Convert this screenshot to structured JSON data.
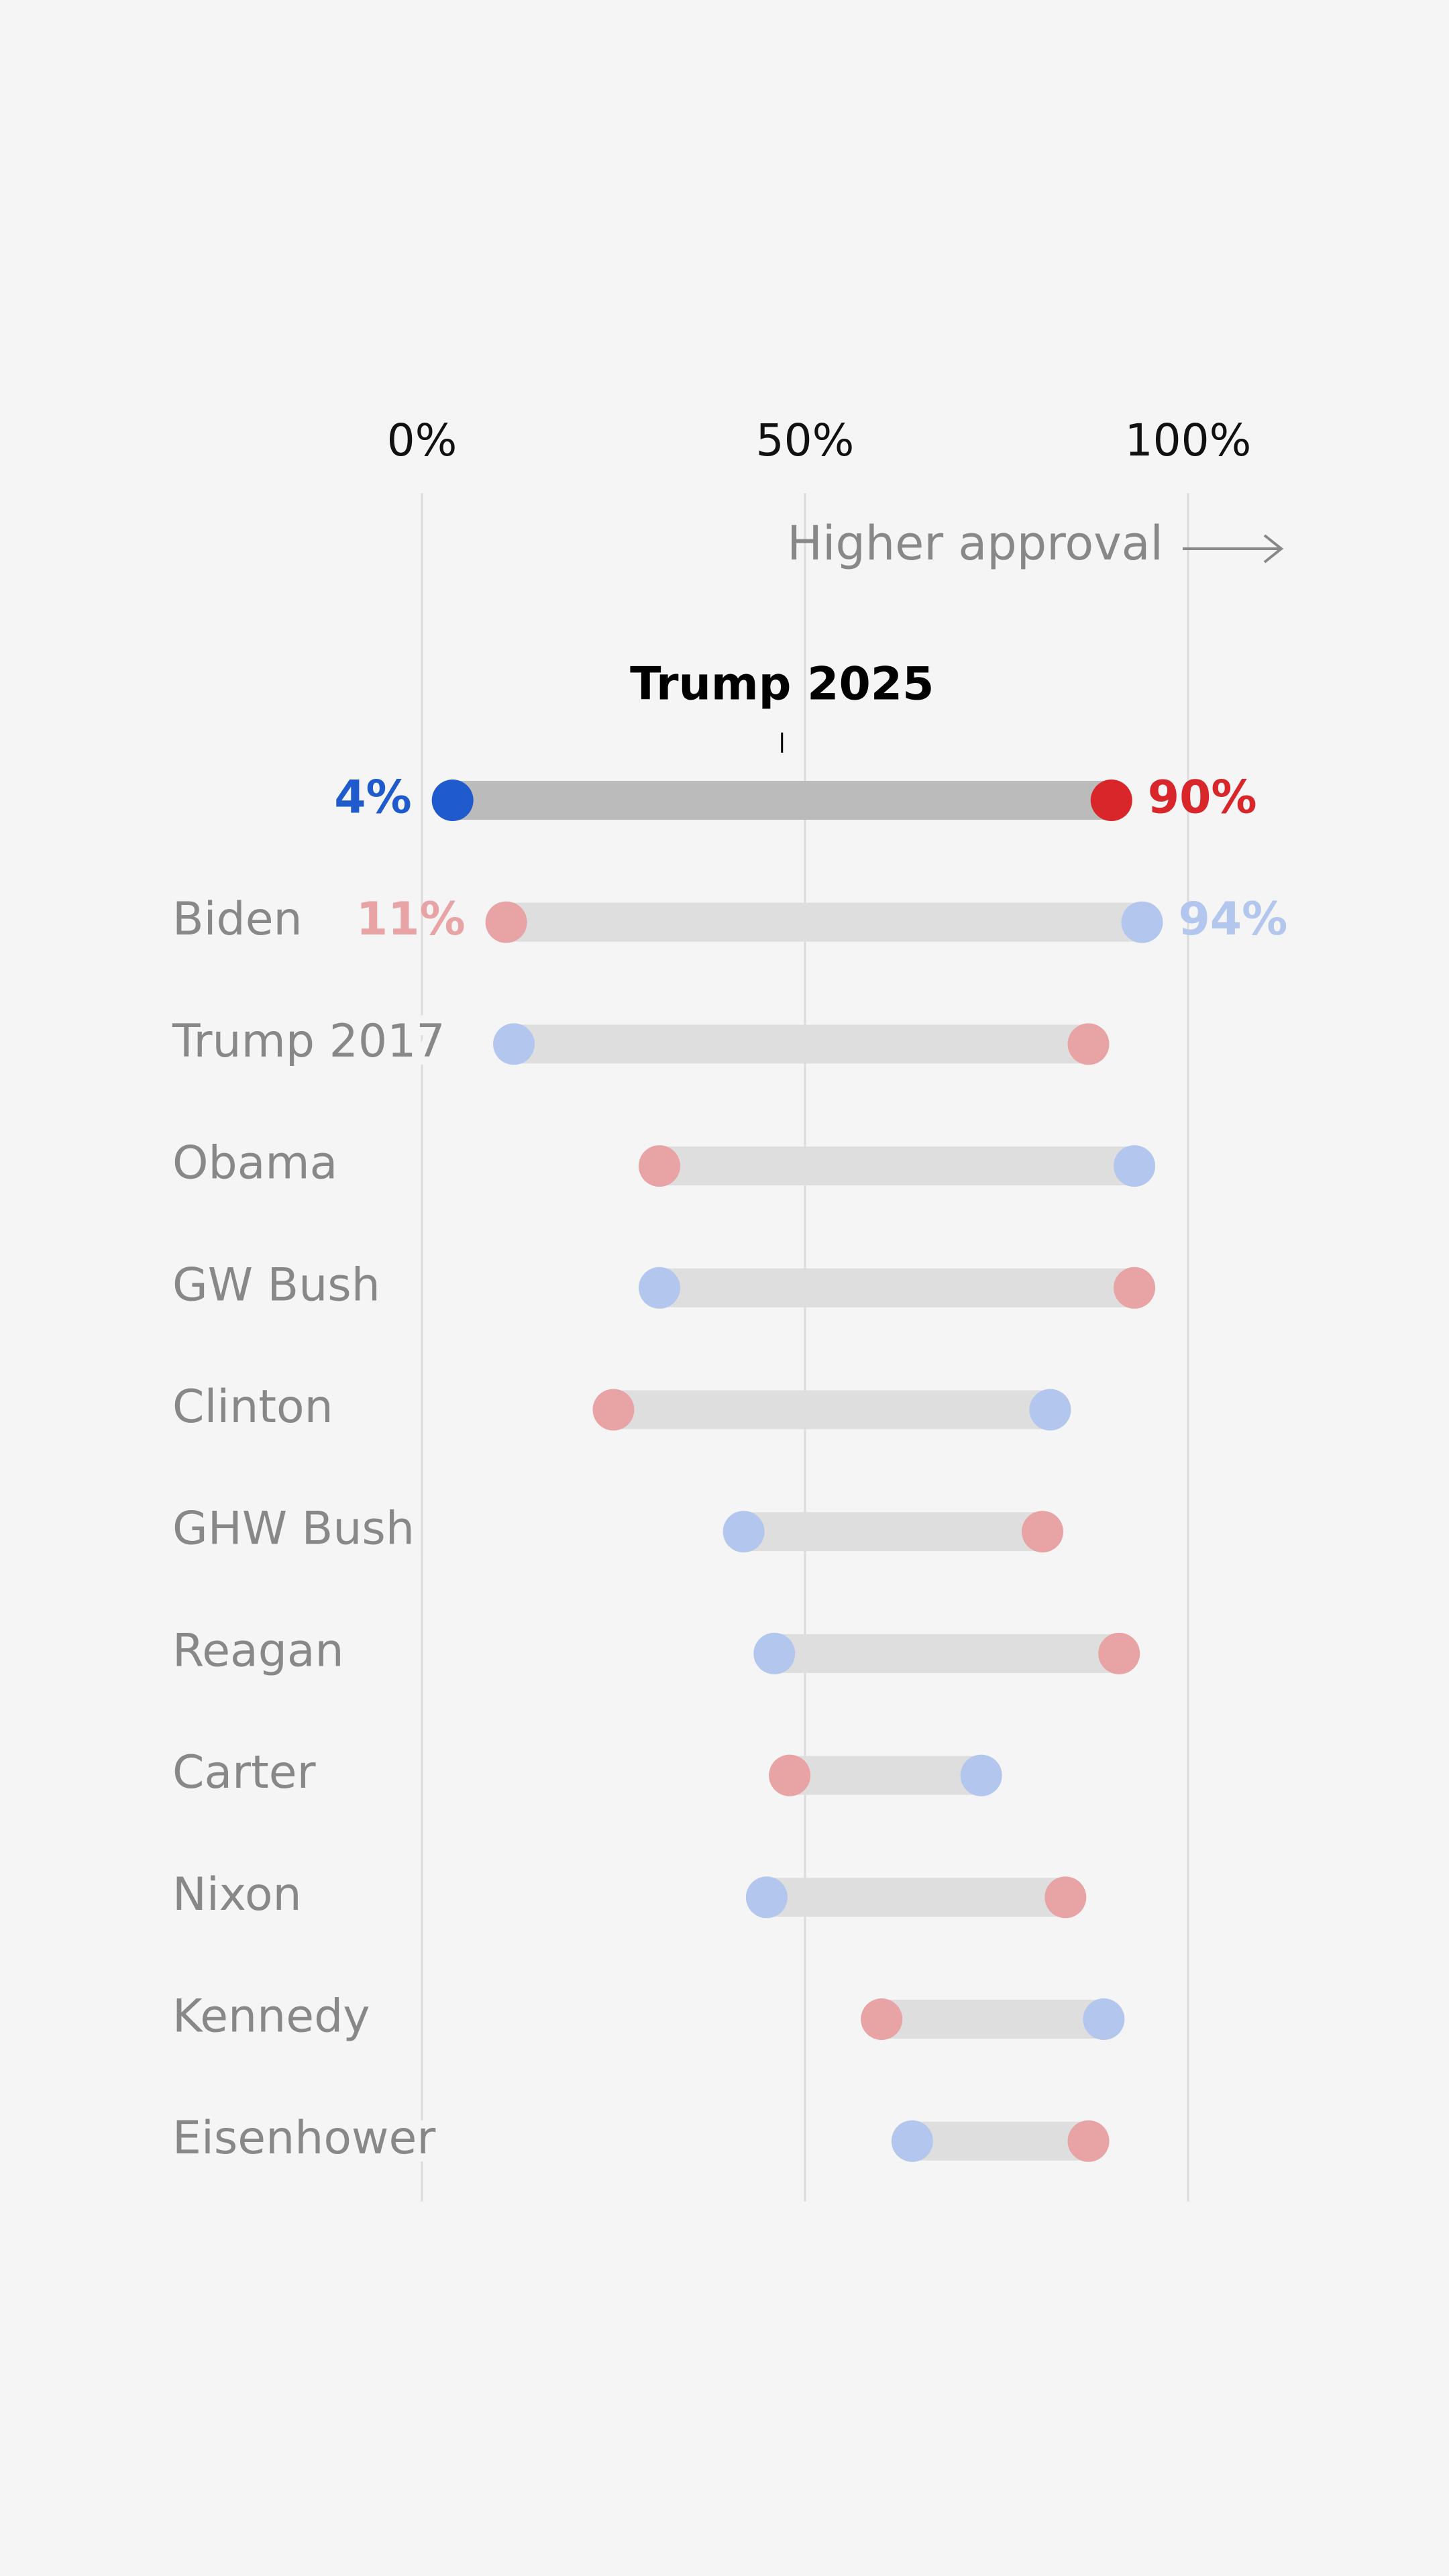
{
  "chart_data": {
    "type": "dumbbell",
    "categories": [
      "Trump 2025",
      "Biden",
      "Trump 2017",
      "Obama",
      "GW Bush",
      "Clinton",
      "GHW Bush",
      "Reagan",
      "Carter",
      "Nixon",
      "Kennedy",
      "Eisenhower"
    ],
    "series": [
      {
        "color": "#b3c7ee",
        "highlight_color": "#1f5bcc",
        "values": [
          4,
          94,
          12,
          93,
          31,
          82,
          42,
          46,
          73,
          45,
          89,
          64
        ],
        "value_labels": [
          "4%",
          "94%",
          null,
          null,
          null,
          null,
          null,
          null,
          null,
          null,
          null,
          null
        ]
      },
      {
        "color": "#e8a3a5",
        "highlight_color": "#d9262b",
        "values": [
          90,
          11,
          87,
          31,
          93,
          25,
          81,
          91,
          48,
          84,
          60,
          87
        ],
        "value_labels": [
          "90%",
          "11%",
          null,
          null,
          null,
          null,
          null,
          null,
          null,
          null,
          null,
          null
        ]
      }
    ],
    "xlim": [
      0,
      100
    ],
    "xticks": [
      {
        "value": 0,
        "label": "0%"
      },
      {
        "value": 50,
        "label": "50%"
      },
      {
        "value": 100,
        "label": "100%"
      }
    ],
    "annotation": "Higher approval",
    "grid": true
  }
}
